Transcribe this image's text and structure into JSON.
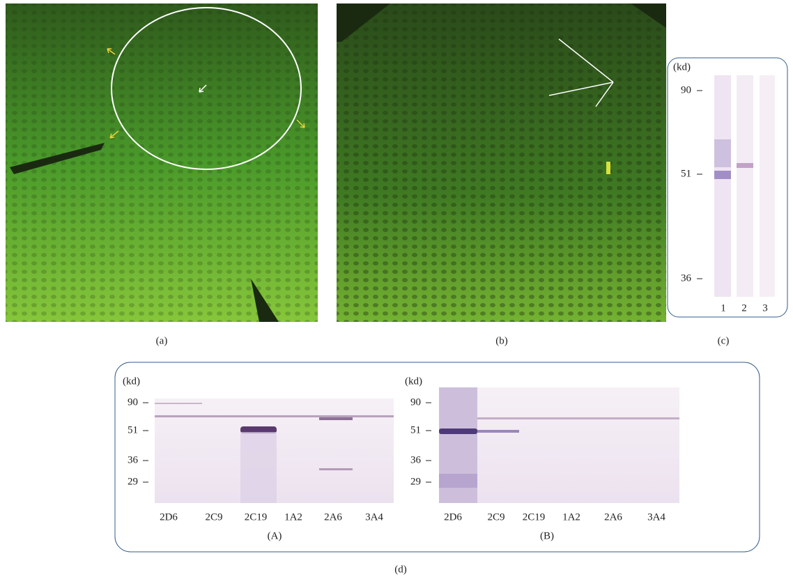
{
  "panels": {
    "a": {
      "label": "(a)"
    },
    "b": {
      "label": "(b)"
    },
    "c": {
      "label": "(c)",
      "unit": "(kd)",
      "markers": [
        "90",
        "51",
        "36"
      ],
      "lanes": [
        "1",
        "2",
        "3"
      ]
    },
    "d": {
      "label": "(d)",
      "blots": [
        {
          "label": "(A)",
          "unit": "(kd)",
          "markers": [
            "90",
            "51",
            "36",
            "29"
          ],
          "lanes": [
            "2D6",
            "2C9",
            "2C19",
            "1A2",
            "2A6",
            "3A4"
          ]
        },
        {
          "label": "(B)",
          "unit": "(kd)",
          "markers": [
            "90",
            "51",
            "36",
            "29"
          ],
          "lanes": [
            "2D6",
            "2C9",
            "2C19",
            "1A2",
            "2A6",
            "3A4"
          ]
        }
      ]
    }
  }
}
